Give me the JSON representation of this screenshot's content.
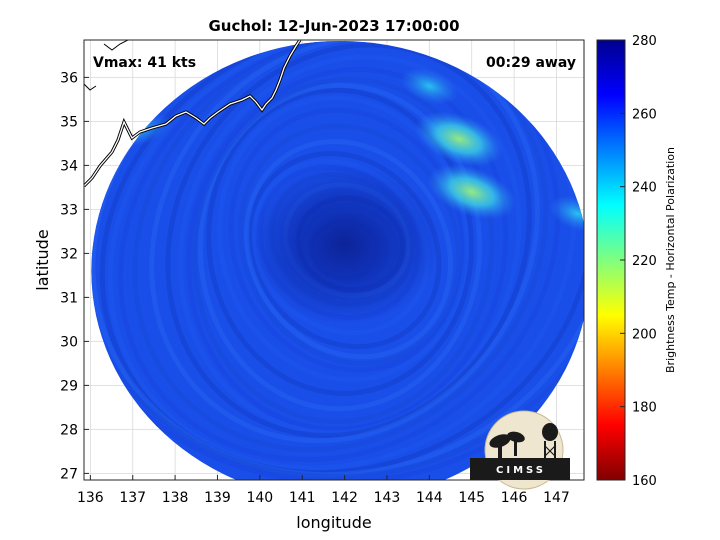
{
  "title": "Guchol: 12-Jun-2023 17:00:00",
  "vmax_label": "Vmax: 41 kts",
  "time_offset_label": "00:29 away",
  "xlabel": "longitude",
  "ylabel": "latitude",
  "colorbar": {
    "label": "Brightness Temp - Horizontal Polarization",
    "min": 160,
    "max": 280,
    "ticks": [
      "160",
      "180",
      "200",
      "220",
      "240",
      "260",
      "280"
    ],
    "colormap": "jet"
  },
  "logo": {
    "text": "CIMSS"
  },
  "map": {
    "lon_range": [
      135.85,
      147.65
    ],
    "lat_range": [
      26.85,
      36.85
    ],
    "x_ticks": [
      "136",
      "137",
      "138",
      "139",
      "140",
      "141",
      "142",
      "143",
      "144",
      "145",
      "146",
      "147"
    ],
    "y_ticks": [
      "27",
      "28",
      "29",
      "30",
      "31",
      "32",
      "33",
      "34",
      "35",
      "36"
    ],
    "grid": true,
    "swath_center": {
      "lon": 141.9,
      "lat": 31.6
    },
    "storm_center": {
      "lon": 142.0,
      "lat": 32.2
    },
    "background_temp_k": 262,
    "features": [
      {
        "type": "warm-band",
        "lon": 144.7,
        "lat": 34.6,
        "temp_k": 232
      },
      {
        "type": "warm-band",
        "lon": 145.0,
        "lat": 33.4,
        "temp_k": 228
      },
      {
        "type": "warm-band",
        "lon": 144.0,
        "lat": 35.8,
        "temp_k": 240
      },
      {
        "type": "warm-band",
        "lon": 147.5,
        "lat": 32.9,
        "temp_k": 238
      },
      {
        "type": "coastal-land",
        "lon": 137.0,
        "lat": 34.8,
        "temp_k": 250
      }
    ]
  }
}
